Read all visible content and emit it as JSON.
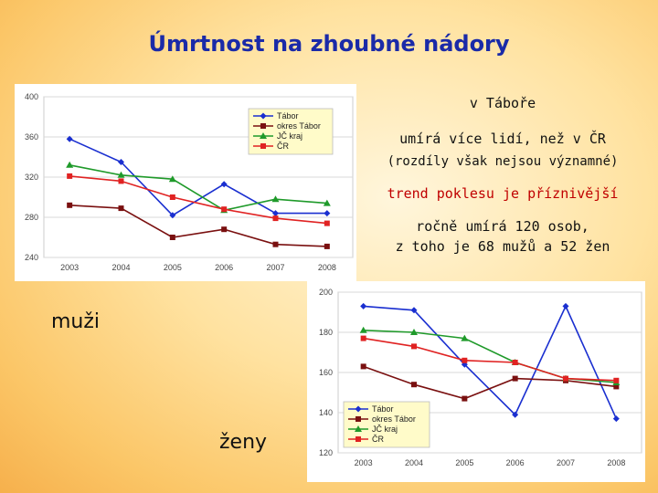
{
  "title": "Úmrtnost na zhoubné nádory",
  "notes": {
    "location": "v Táboře",
    "more": "umírá více lidí, než v ČR",
    "diff": "(rozdíly však nejsou významné)",
    "trend": "trend poklesu je příznivější",
    "yearly1": "ročně umírá 120 osob,",
    "yearly2": "z toho je 68 mužů a 52 žen"
  },
  "labels": {
    "men": "muži",
    "women": "ženy"
  },
  "colors": {
    "tabor": "#1a2fd0",
    "okres": "#7a1010",
    "jc": "#1f9a2a",
    "cr": "#e02222",
    "title": "#1a2aa8",
    "trend": "#c00000"
  },
  "chart_data": [
    {
      "type": "line",
      "group": "muži",
      "x": [
        "2003",
        "2004",
        "2005",
        "2006",
        "2007",
        "2008"
      ],
      "ylim": [
        240,
        400
      ],
      "yticks": [
        "240",
        "280",
        "320",
        "360",
        "400"
      ],
      "legend_position": "top-right",
      "series": [
        {
          "name": "Tábor",
          "key": "tabor",
          "marker": "diamond",
          "values": [
            358,
            335,
            282,
            313,
            284,
            284
          ]
        },
        {
          "name": "okres Tábor",
          "key": "okres",
          "marker": "square",
          "values": [
            292,
            289,
            260,
            268,
            253,
            251
          ]
        },
        {
          "name": "JČ kraj",
          "key": "jc",
          "marker": "triangle",
          "values": [
            332,
            322,
            318,
            287,
            298,
            294
          ]
        },
        {
          "name": "ČR",
          "key": "cr",
          "marker": "square",
          "values": [
            321,
            316,
            300,
            288,
            279,
            274
          ]
        }
      ]
    },
    {
      "type": "line",
      "group": "ženy",
      "x": [
        "2003",
        "2004",
        "2005",
        "2006",
        "2007",
        "2008"
      ],
      "ylim": [
        120,
        200
      ],
      "yticks": [
        "120",
        "140",
        "160",
        "180",
        "200"
      ],
      "legend_position": "bottom-left",
      "series": [
        {
          "name": "Tábor",
          "key": "tabor",
          "marker": "diamond",
          "values": [
            193,
            191,
            164,
            139,
            193,
            137
          ]
        },
        {
          "name": "okres Tábor",
          "key": "okres",
          "marker": "square",
          "values": [
            163,
            154,
            147,
            157,
            156,
            153
          ]
        },
        {
          "name": "JČ kraj",
          "key": "jc",
          "marker": "triangle",
          "values": [
            181,
            180,
            177,
            165,
            157,
            155
          ]
        },
        {
          "name": "ČR",
          "key": "cr",
          "marker": "square",
          "values": [
            177,
            173,
            166,
            165,
            157,
            156
          ]
        }
      ]
    }
  ]
}
